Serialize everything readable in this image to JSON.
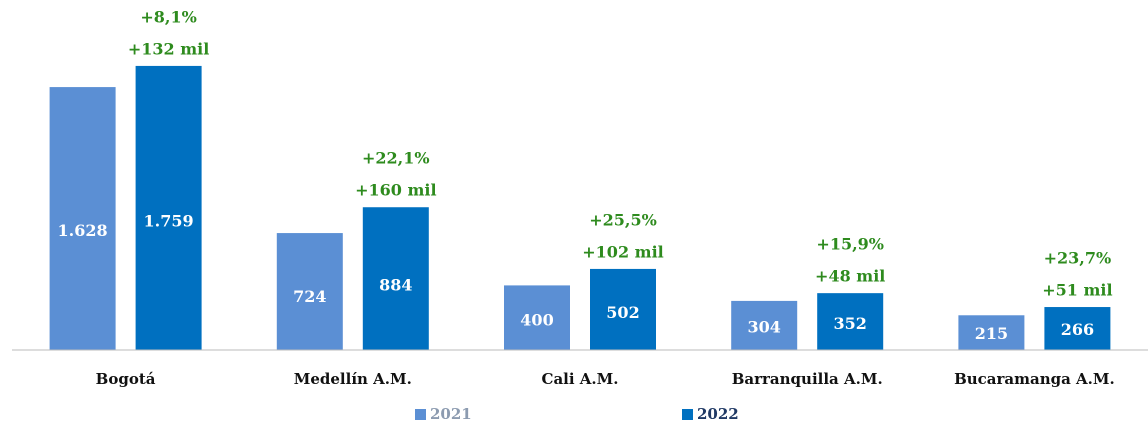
{
  "chart_data": {
    "type": "bar",
    "categories": [
      "Bogotá",
      "Medellín A.M.",
      "Cali A.M.",
      "Barranquilla A.M.",
      "Bucaramanga A.M."
    ],
    "series": [
      {
        "name": "2021",
        "color": "#5b8fd4",
        "values": [
          1628,
          724,
          400,
          304,
          215
        ],
        "value_labels": [
          "1.628",
          "724",
          "400",
          "304",
          "215"
        ]
      },
      {
        "name": "2022",
        "color": "#0070c0",
        "values": [
          1759,
          884,
          502,
          352,
          266
        ],
        "value_labels": [
          "1.759",
          "884",
          "502",
          "352",
          "266"
        ]
      }
    ],
    "annotations": [
      {
        "pct": "+8,1%",
        "diff": "+132 mil"
      },
      {
        "pct": "+22,1%",
        "diff": "+160 mil"
      },
      {
        "pct": "+25,5%",
        "diff": "+102 mil"
      },
      {
        "pct": "+15,9%",
        "diff": "+48 mil"
      },
      {
        "pct": "+23,7%",
        "diff": "+51 mil"
      }
    ],
    "ylim": [
      0,
      2000
    ]
  }
}
